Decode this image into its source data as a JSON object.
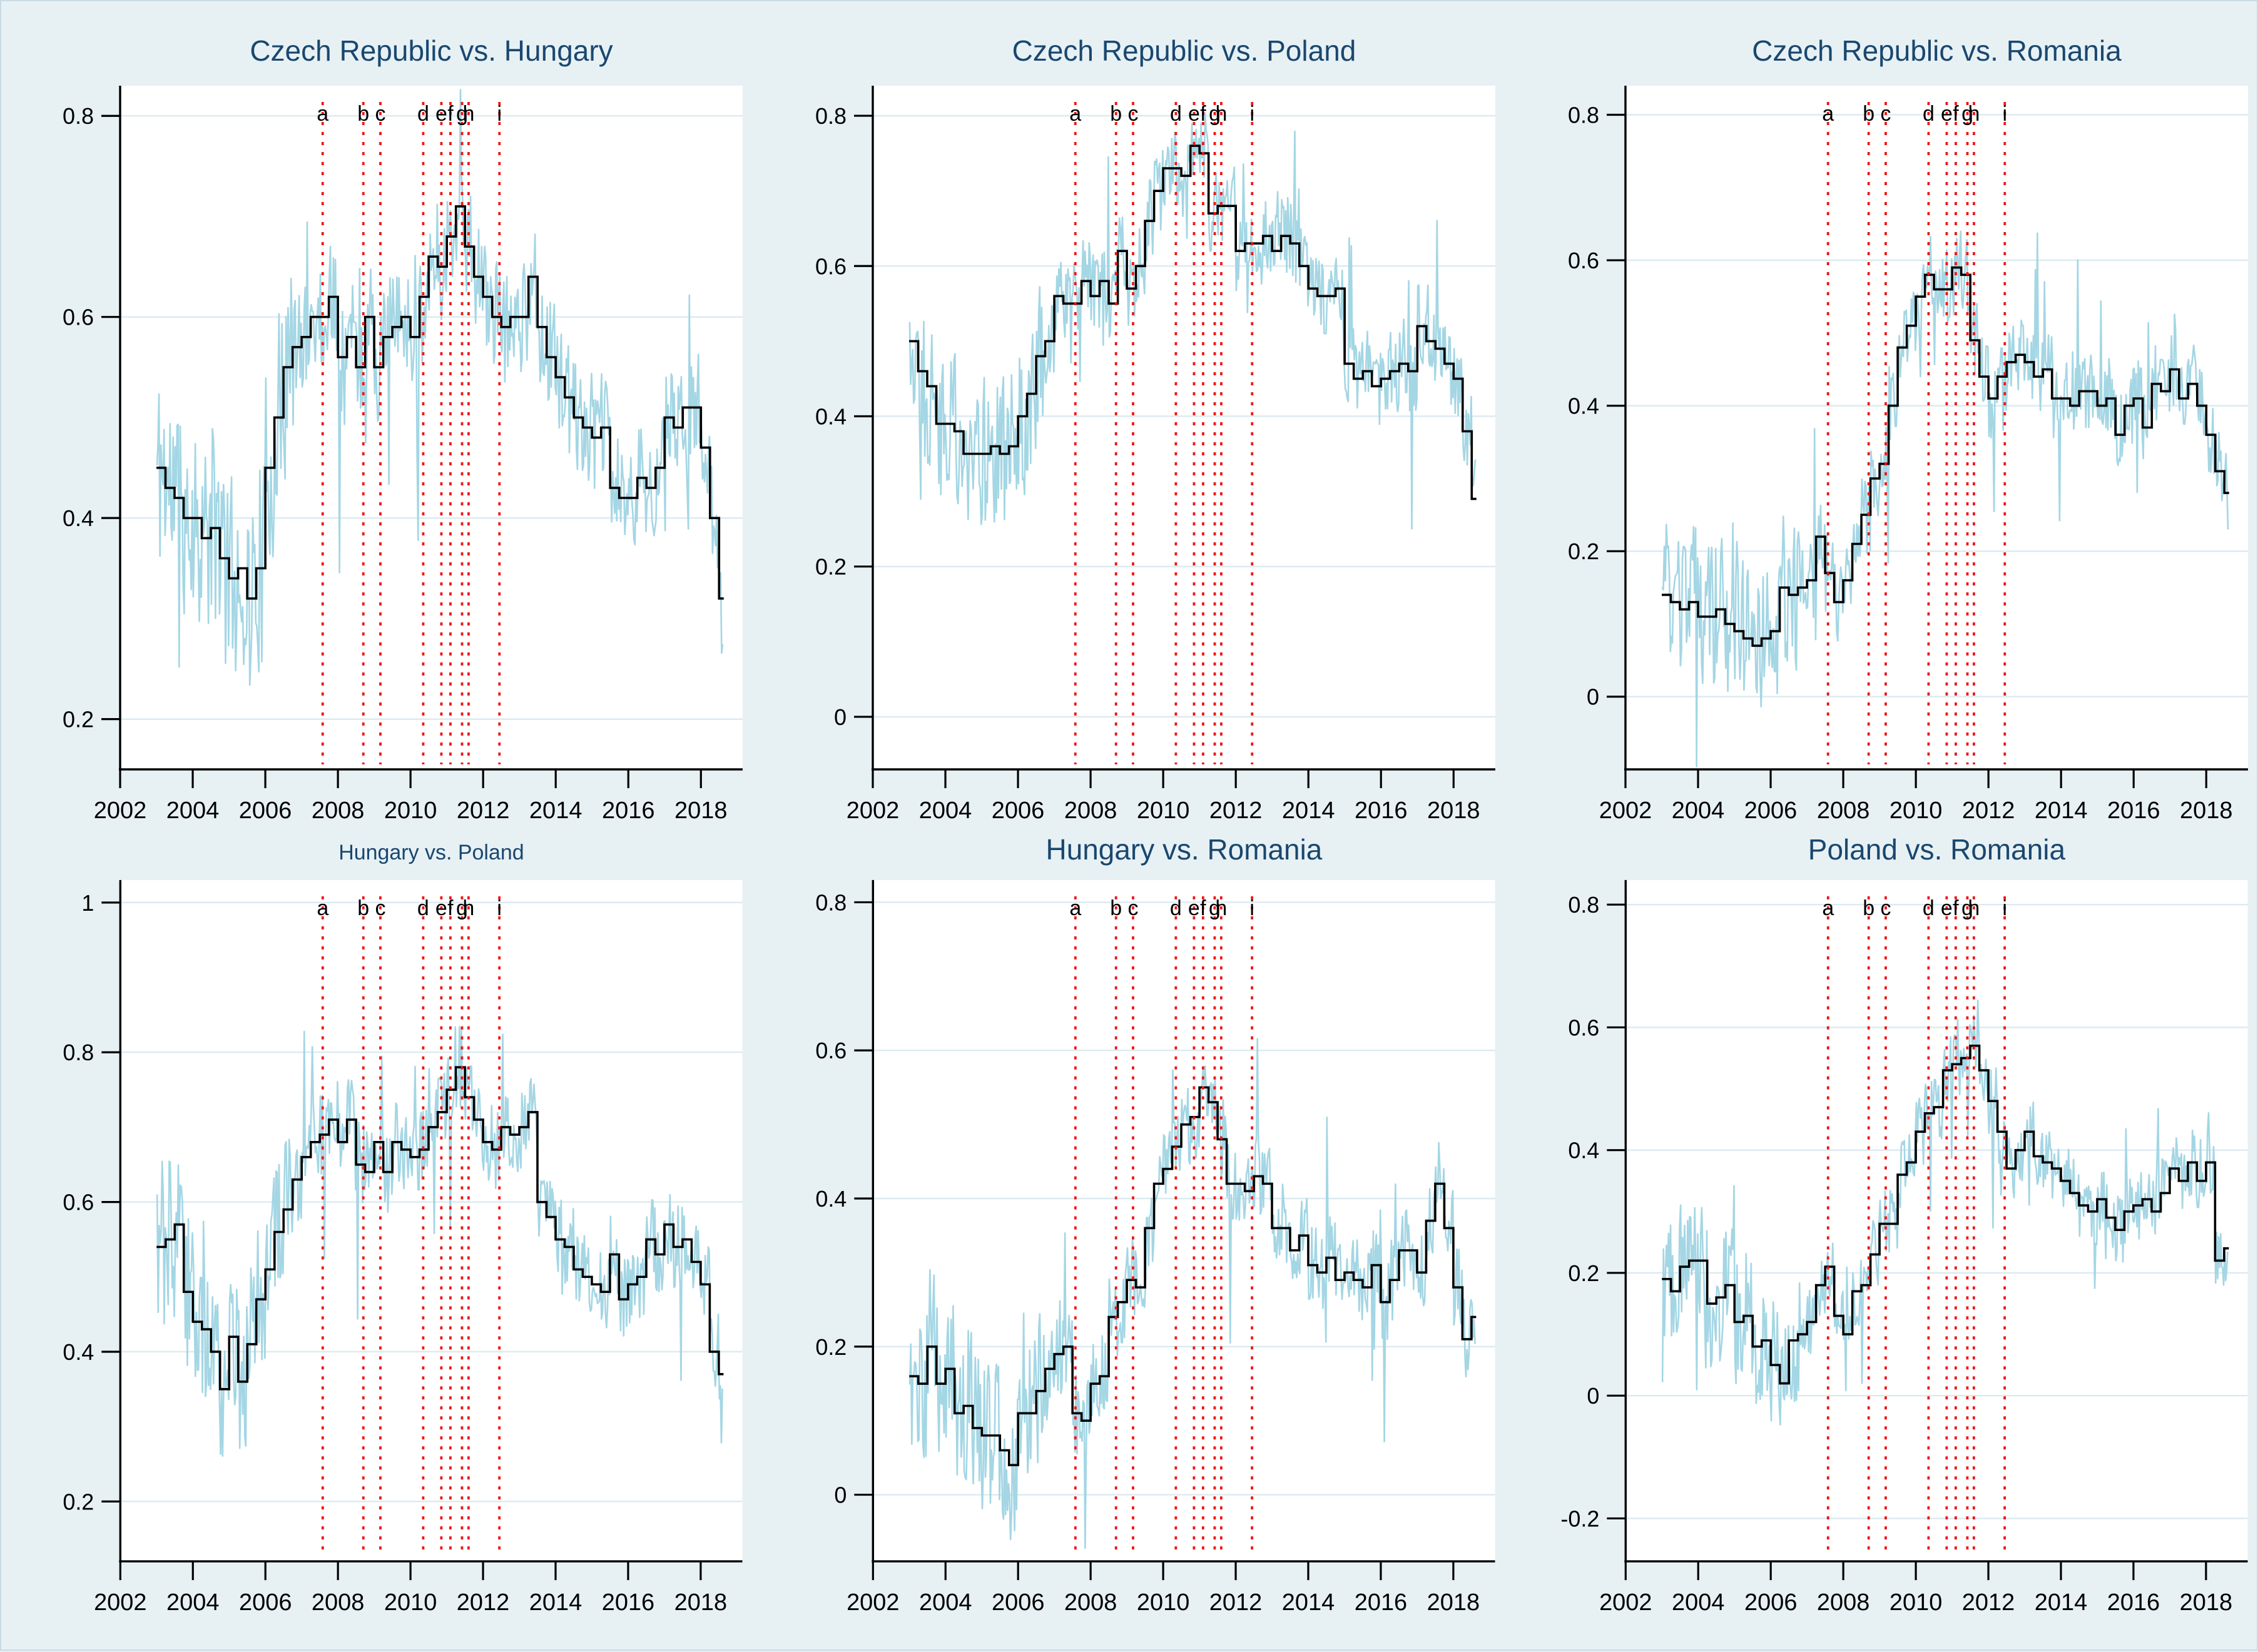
{
  "page": {
    "background": "#e7f1f4",
    "description": "Six-panel figure of pairwise rolling correlations, 2003-2018"
  },
  "styles": {
    "plot_background": "#ffffff",
    "title_color": "#1a476f",
    "axis_color": "#000000",
    "gridline_color": "#dceaf0",
    "tick_label_color": "#000000",
    "noisy_series_color": "#a4d6e4",
    "step_series_color": "#000000",
    "event_line_color": "#f21414"
  },
  "x_axis": {
    "min": 2002,
    "max": 2019.15,
    "ticks": [
      2002,
      2004,
      2006,
      2008,
      2010,
      2012,
      2014,
      2016,
      2018
    ],
    "tick_labels": [
      "2002",
      "2004",
      "2006",
      "2008",
      "2010",
      "2012",
      "2014",
      "2016",
      "2018"
    ]
  },
  "event_lines": {
    "letters": [
      "a",
      "b",
      "c",
      "d",
      "e",
      "f",
      "g",
      "h",
      "i"
    ],
    "positions": [
      2007.58,
      2008.7,
      2009.17,
      2010.35,
      2010.85,
      2011.1,
      2011.42,
      2011.6,
      2012.45
    ]
  },
  "noise_model": {
    "note": "light-blue series = step_values plus high-frequency noise (visual approximation)",
    "points_per_year": 36,
    "base_amplitude": 0.055,
    "early_until": 2006.8,
    "early_factor": 1.9,
    "spike_probability": 0.05,
    "spike_amplitude": 0.17
  },
  "chart_data": [
    {
      "type": "line",
      "title": "Czech Republic vs. Hungary",
      "title_size": "large",
      "ylim": [
        0.15,
        0.83
      ],
      "yticks": [
        0.2,
        0.4,
        0.6,
        0.8
      ],
      "ytick_labels": [
        "0.2",
        "0.4",
        "0.6",
        "0.8"
      ],
      "x_start": 2003.0,
      "x_interval": 0.25,
      "noise_seed": 11,
      "step_values": [
        0.45,
        0.43,
        0.42,
        0.4,
        0.4,
        0.38,
        0.39,
        0.36,
        0.34,
        0.35,
        0.32,
        0.35,
        0.45,
        0.5,
        0.55,
        0.57,
        0.58,
        0.6,
        0.6,
        0.62,
        0.56,
        0.58,
        0.55,
        0.6,
        0.55,
        0.58,
        0.59,
        0.6,
        0.58,
        0.62,
        0.66,
        0.65,
        0.68,
        0.71,
        0.67,
        0.64,
        0.62,
        0.6,
        0.59,
        0.6,
        0.6,
        0.64,
        0.59,
        0.56,
        0.54,
        0.52,
        0.5,
        0.49,
        0.48,
        0.49,
        0.43,
        0.42,
        0.42,
        0.44,
        0.43,
        0.45,
        0.5,
        0.49,
        0.51,
        0.51,
        0.47,
        0.4,
        0.32
      ]
    },
    {
      "type": "line",
      "title": "Czech Republic vs. Poland",
      "title_size": "large",
      "ylim": [
        -0.07,
        0.84
      ],
      "yticks": [
        0,
        0.2,
        0.4,
        0.6,
        0.8
      ],
      "ytick_labels": [
        "0",
        "0.2",
        "0.4",
        "0.6",
        "0.8"
      ],
      "x_start": 2003.0,
      "x_interval": 0.25,
      "noise_seed": 22,
      "step_values": [
        0.5,
        0.46,
        0.44,
        0.39,
        0.39,
        0.38,
        0.35,
        0.35,
        0.35,
        0.36,
        0.35,
        0.36,
        0.4,
        0.43,
        0.48,
        0.5,
        0.56,
        0.55,
        0.55,
        0.58,
        0.56,
        0.58,
        0.55,
        0.62,
        0.57,
        0.6,
        0.66,
        0.7,
        0.73,
        0.73,
        0.72,
        0.76,
        0.75,
        0.67,
        0.68,
        0.68,
        0.62,
        0.63,
        0.63,
        0.64,
        0.62,
        0.64,
        0.63,
        0.6,
        0.57,
        0.56,
        0.56,
        0.57,
        0.47,
        0.45,
        0.46,
        0.44,
        0.45,
        0.46,
        0.47,
        0.46,
        0.52,
        0.5,
        0.49,
        0.47,
        0.45,
        0.38,
        0.29
      ]
    },
    {
      "type": "line",
      "title": "Czech Republic vs. Romania",
      "title_size": "large",
      "ylim": [
        -0.1,
        0.84
      ],
      "yticks": [
        0,
        0.2,
        0.4,
        0.6,
        0.8
      ],
      "ytick_labels": [
        "0",
        "0.2",
        "0.4",
        "0.6",
        "0.8"
      ],
      "x_start": 2003.0,
      "x_interval": 0.25,
      "noise_seed": 33,
      "step_values": [
        0.14,
        0.13,
        0.12,
        0.13,
        0.11,
        0.11,
        0.12,
        0.1,
        0.09,
        0.08,
        0.07,
        0.08,
        0.09,
        0.15,
        0.14,
        0.15,
        0.16,
        0.22,
        0.17,
        0.13,
        0.16,
        0.21,
        0.25,
        0.3,
        0.32,
        0.4,
        0.48,
        0.51,
        0.55,
        0.58,
        0.56,
        0.56,
        0.59,
        0.58,
        0.49,
        0.44,
        0.41,
        0.44,
        0.46,
        0.47,
        0.46,
        0.44,
        0.45,
        0.41,
        0.41,
        0.4,
        0.42,
        0.42,
        0.4,
        0.41,
        0.36,
        0.4,
        0.41,
        0.37,
        0.43,
        0.42,
        0.45,
        0.41,
        0.43,
        0.4,
        0.36,
        0.31,
        0.28
      ]
    },
    {
      "type": "line",
      "title": "Hungary vs. Poland",
      "title_size": "small",
      "ylim": [
        0.12,
        1.03
      ],
      "yticks": [
        0.2,
        0.4,
        0.6,
        0.8,
        1
      ],
      "ytick_labels": [
        "0.2",
        "0.4",
        "0.6",
        "0.8",
        "1"
      ],
      "x_start": 2003.0,
      "x_interval": 0.25,
      "noise_seed": 44,
      "step_values": [
        0.54,
        0.55,
        0.57,
        0.48,
        0.44,
        0.43,
        0.4,
        0.35,
        0.42,
        0.36,
        0.41,
        0.47,
        0.51,
        0.56,
        0.59,
        0.63,
        0.66,
        0.68,
        0.69,
        0.71,
        0.68,
        0.71,
        0.65,
        0.64,
        0.68,
        0.64,
        0.68,
        0.67,
        0.66,
        0.67,
        0.7,
        0.72,
        0.75,
        0.78,
        0.74,
        0.71,
        0.68,
        0.67,
        0.7,
        0.69,
        0.7,
        0.72,
        0.6,
        0.58,
        0.55,
        0.54,
        0.51,
        0.5,
        0.49,
        0.48,
        0.53,
        0.47,
        0.49,
        0.5,
        0.55,
        0.53,
        0.57,
        0.54,
        0.55,
        0.52,
        0.49,
        0.4,
        0.37
      ]
    },
    {
      "type": "line",
      "title": "Hungary vs. Romania",
      "title_size": "large",
      "ylim": [
        -0.09,
        0.83
      ],
      "yticks": [
        0,
        0.2,
        0.4,
        0.6,
        0.8
      ],
      "ytick_labels": [
        "0",
        "0.2",
        "0.4",
        "0.6",
        "0.8"
      ],
      "x_start": 2003.0,
      "x_interval": 0.25,
      "noise_seed": 55,
      "step_values": [
        0.16,
        0.15,
        0.2,
        0.15,
        0.17,
        0.11,
        0.12,
        0.09,
        0.08,
        0.08,
        0.06,
        0.04,
        0.11,
        0.11,
        0.14,
        0.17,
        0.19,
        0.2,
        0.11,
        0.1,
        0.15,
        0.16,
        0.24,
        0.26,
        0.29,
        0.28,
        0.36,
        0.42,
        0.44,
        0.47,
        0.5,
        0.51,
        0.55,
        0.53,
        0.48,
        0.42,
        0.42,
        0.41,
        0.43,
        0.42,
        0.36,
        0.36,
        0.33,
        0.35,
        0.31,
        0.3,
        0.32,
        0.29,
        0.3,
        0.29,
        0.28,
        0.31,
        0.26,
        0.29,
        0.33,
        0.33,
        0.3,
        0.37,
        0.42,
        0.36,
        0.28,
        0.21,
        0.24
      ]
    },
    {
      "type": "line",
      "title": "Poland vs. Romania",
      "title_size": "large",
      "ylim": [
        -0.27,
        0.84
      ],
      "yticks": [
        -0.2,
        0,
        0.2,
        0.4,
        0.6,
        0.8
      ],
      "ytick_labels": [
        "-0.2",
        "0",
        "0.2",
        "0.4",
        "0.6",
        "0.8"
      ],
      "x_start": 2003.0,
      "x_interval": 0.25,
      "noise_seed": 66,
      "step_values": [
        0.19,
        0.17,
        0.21,
        0.22,
        0.22,
        0.15,
        0.16,
        0.18,
        0.12,
        0.13,
        0.08,
        0.09,
        0.05,
        0.02,
        0.09,
        0.1,
        0.12,
        0.18,
        0.21,
        0.13,
        0.1,
        0.17,
        0.18,
        0.23,
        0.28,
        0.28,
        0.36,
        0.38,
        0.43,
        0.46,
        0.47,
        0.53,
        0.54,
        0.55,
        0.57,
        0.53,
        0.48,
        0.43,
        0.37,
        0.4,
        0.43,
        0.39,
        0.38,
        0.37,
        0.35,
        0.33,
        0.31,
        0.3,
        0.32,
        0.29,
        0.27,
        0.3,
        0.31,
        0.32,
        0.3,
        0.33,
        0.37,
        0.35,
        0.38,
        0.35,
        0.38,
        0.22,
        0.24
      ]
    }
  ]
}
